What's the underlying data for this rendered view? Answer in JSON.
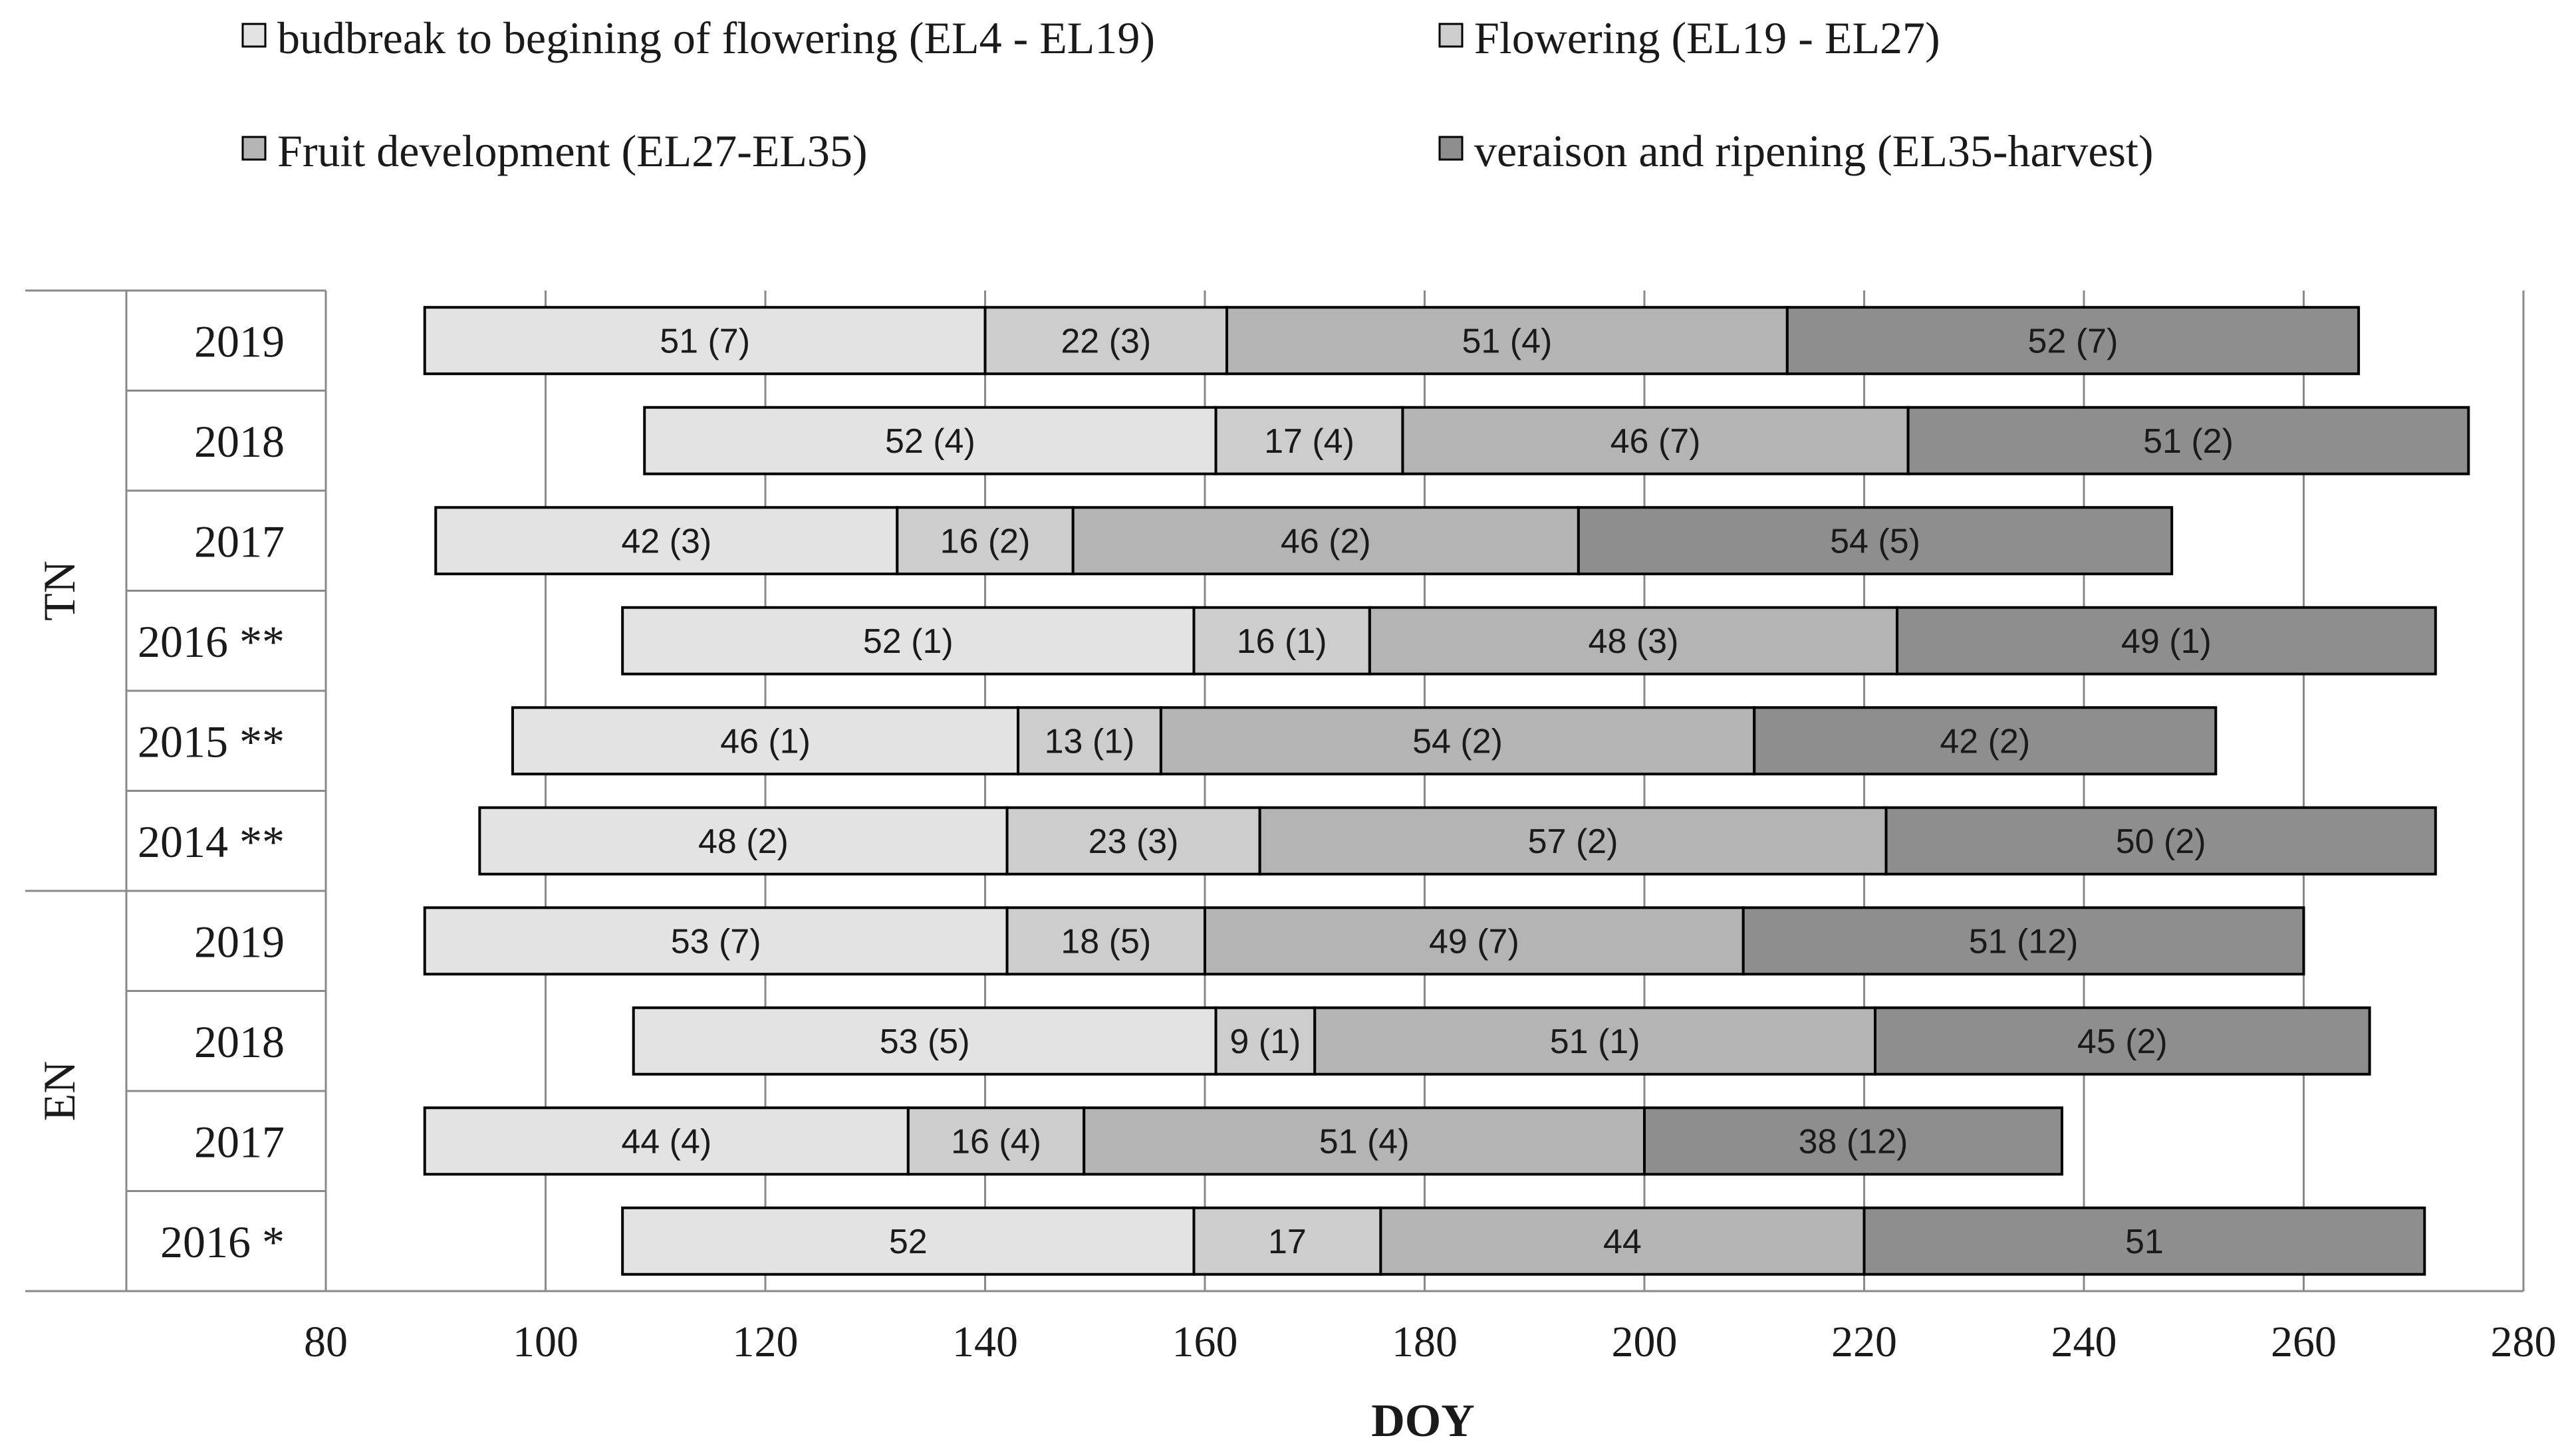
{
  "chart_data": {
    "type": "bar",
    "orientation": "horizontal",
    "stacked": true,
    "xlabel": "DOY",
    "xlim": [
      80,
      280
    ],
    "xticks": [
      80,
      100,
      120,
      140,
      160,
      180,
      200,
      220,
      240,
      260,
      280
    ],
    "grid": true,
    "legend_position": "top",
    "series": [
      {
        "name": "budbreak to begining of flowering (EL4 - EL19)",
        "color": "#e3e3e3"
      },
      {
        "name": "Flowering (EL19 - EL27)",
        "color": "#cdcdcd"
      },
      {
        "name": "Fruit development (EL27-EL35)",
        "color": "#b4b4b4"
      },
      {
        "name": "veraison and ripening (EL35-harvest)",
        "color": "#8e8e8e"
      }
    ],
    "groups": [
      {
        "name": "TN",
        "rows": [
          {
            "label": "2019",
            "start": 89,
            "segments": [
              51,
              22,
              51,
              52
            ],
            "labels": [
              "51 (7)",
              "22 (3)",
              "51 (4)",
              "52 (7)"
            ]
          },
          {
            "label": "2018",
            "start": 109,
            "segments": [
              52,
              17,
              46,
              51
            ],
            "labels": [
              "52 (4)",
              "17 (4)",
              "46 (7)",
              "51 (2)"
            ]
          },
          {
            "label": "2017",
            "start": 90,
            "segments": [
              42,
              16,
              46,
              54
            ],
            "labels": [
              "42 (3)",
              "16 (2)",
              "46 (2)",
              "54 (5)"
            ]
          },
          {
            "label": "2016 **",
            "start": 107,
            "segments": [
              52,
              16,
              48,
              49
            ],
            "labels": [
              "52 (1)",
              "16 (1)",
              "48 (3)",
              "49 (1)"
            ]
          },
          {
            "label": "2015 **",
            "start": 97,
            "segments": [
              46,
              13,
              54,
              42
            ],
            "labels": [
              "46 (1)",
              "13 (1)",
              "54 (2)",
              "42 (2)"
            ]
          },
          {
            "label": "2014 **",
            "start": 94,
            "segments": [
              48,
              23,
              57,
              50
            ],
            "labels": [
              "48 (2)",
              "23 (3)",
              "57 (2)",
              "50 (2)"
            ]
          }
        ]
      },
      {
        "name": "EN",
        "rows": [
          {
            "label": "2019",
            "start": 89,
            "segments": [
              53,
              18,
              49,
              51
            ],
            "labels": [
              "53 (7)",
              "18 (5)",
              "49 (7)",
              "51 (12)"
            ]
          },
          {
            "label": "2018",
            "start": 108,
            "segments": [
              53,
              9,
              51,
              45
            ],
            "labels": [
              "53 (5)",
              "9 (1)",
              "51 (1)",
              "45 (2)"
            ]
          },
          {
            "label": "2017",
            "start": 89,
            "segments": [
              44,
              16,
              51,
              38
            ],
            "labels": [
              "44 (4)",
              "16 (4)",
              "51 (4)",
              "38 (12)"
            ]
          },
          {
            "label": "2016 *",
            "start": 107,
            "segments": [
              52,
              17,
              44,
              51
            ],
            "labels": [
              "52",
              "17",
              "44",
              "51"
            ]
          }
        ]
      }
    ]
  }
}
